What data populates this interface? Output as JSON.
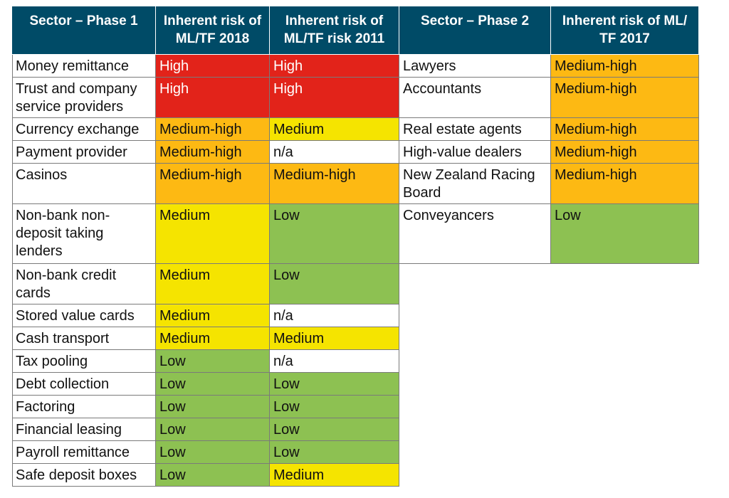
{
  "colors": {
    "header": "#004b67",
    "high": "#e2231a",
    "medium_high": "#fdb913",
    "medium": "#f5e400",
    "low": "#8dc152",
    "na": "#ffffff"
  },
  "headers": {
    "phase1_sector": "Sector – Phase 1",
    "risk_2018": "Inherent risk of ML/TF 2018",
    "risk_2011": "Inherent risk of ML/TF risk 2011",
    "phase2_sector": "Sector – Phase 2",
    "risk_2017": "Inherent risk of ML/ TF 2017"
  },
  "phase1": [
    {
      "sector": "Money remittance",
      "r2018": "High",
      "r2011": "High"
    },
    {
      "sector": "Trust and company service providers",
      "r2018": "High",
      "r2011": "High"
    },
    {
      "sector": "Currency exchange",
      "r2018": "Medium-high",
      "r2011": "Medium"
    },
    {
      "sector": "Payment provider",
      "r2018": "Medium-high",
      "r2011": "n/a"
    },
    {
      "sector": "Casinos",
      "r2018": "Medium-high",
      "r2011": "Medium-high"
    },
    {
      "sector": "Non-bank non-deposit taking lenders",
      "r2018": "Medium",
      "r2011": "Low"
    },
    {
      "sector": "Non-bank credit cards",
      "r2018": "Medium",
      "r2011": "Low"
    },
    {
      "sector": "Stored value cards",
      "r2018": "Medium",
      "r2011": "n/a"
    },
    {
      "sector": "Cash transport",
      "r2018": "Medium",
      "r2011": "Medium"
    },
    {
      "sector": "Tax pooling",
      "r2018": "Low",
      "r2011": "n/a"
    },
    {
      "sector": "Debt collection",
      "r2018": "Low",
      "r2011": "Low"
    },
    {
      "sector": "Factoring",
      "r2018": "Low",
      "r2011": "Low"
    },
    {
      "sector": "Financial leasing",
      "r2018": "Low",
      "r2011": "Low"
    },
    {
      "sector": "Payroll remittance",
      "r2018": "Low",
      "r2011": "Low"
    },
    {
      "sector": "Safe deposit boxes",
      "r2018": "Low",
      "r2011": "Medium"
    }
  ],
  "phase2": [
    {
      "sector": "Lawyers",
      "r2017": "Medium-high"
    },
    {
      "sector": "Accountants",
      "r2017": "Medium-high"
    },
    {
      "sector": "Real estate agents",
      "r2017": "Medium-high"
    },
    {
      "sector": "High-value dealers",
      "r2017": "Medium-high"
    },
    {
      "sector": "New Zealand Racing Board",
      "r2017": "Medium-high"
    },
    {
      "sector": "Conveyancers",
      "r2017": "Low"
    }
  ]
}
